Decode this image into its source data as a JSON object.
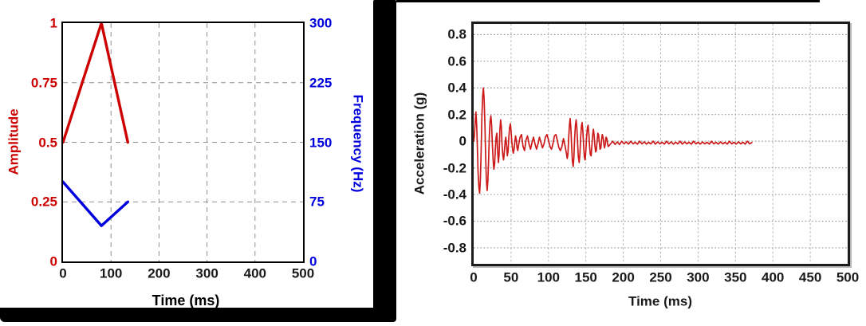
{
  "colors": {
    "amplitude_red": "#cc0000",
    "frequency_blue": "#0000dd",
    "acceleration_red": "#cc1a1a",
    "panel_border_black": "#000000"
  },
  "chart_data": [
    {
      "id": "sweep-profile",
      "type": "line",
      "title": "",
      "xlabel": "Time (ms)",
      "ylabel_left": "Amplitude",
      "ylabel_right": "Frequency (Hz)",
      "xlim": [
        0,
        500
      ],
      "xticks": {
        "values": [
          0,
          100,
          200,
          300,
          400,
          500
        ],
        "labels": [
          "0",
          "100",
          "200",
          "300",
          "400",
          "500"
        ]
      },
      "ylim_left": [
        0,
        1
      ],
      "yticks_left": {
        "values": [
          0,
          0.25,
          0.5,
          0.75,
          1
        ],
        "labels": [
          "0",
          "0.25",
          "0.5",
          "0.75",
          "1"
        ]
      },
      "ylim_right": [
        0,
        300
      ],
      "yticks_right": {
        "values": [
          0,
          75,
          150,
          225,
          300
        ],
        "labels": [
          "0",
          "75",
          "150",
          "225",
          "300"
        ]
      },
      "grid": "dashed-gray",
      "legend": "none",
      "series": [
        {
          "name": "Amplitude",
          "axis": "left",
          "color": "#cc0000",
          "width": 3.4,
          "points": [
            [
              0,
              0.5
            ],
            [
              80,
              1.0
            ],
            [
              135,
              0.5
            ]
          ]
        },
        {
          "name": "Frequency",
          "axis": "right",
          "color": "#0000dd",
          "width": 3.4,
          "points": [
            [
              0,
              100
            ],
            [
              80,
              45
            ],
            [
              135,
              75
            ]
          ]
        }
      ]
    },
    {
      "id": "acceleration-response",
      "type": "line",
      "title": "",
      "xlabel": "Time (ms)",
      "ylabel": "Acceleration (g)",
      "xlim": [
        0,
        500
      ],
      "xticks": {
        "values": [
          0,
          50,
          100,
          150,
          200,
          250,
          300,
          350,
          400,
          450,
          500
        ],
        "labels": [
          "0",
          "50",
          "100",
          "150",
          "200",
          "250",
          "300",
          "350",
          "400",
          "450",
          "500"
        ]
      },
      "ylim": [
        -0.92,
        0.88
      ],
      "yticks": {
        "values": [
          0.8,
          0.6,
          0.4,
          0.2,
          0,
          -0.2,
          -0.4,
          -0.6,
          -0.8
        ],
        "labels": [
          "0.8",
          "0.6",
          "0.4",
          "0.2",
          "0",
          "-0.2",
          "-0.4",
          "-0.6",
          "-0.8"
        ]
      },
      "grid": "dotted-gray",
      "legend": "none",
      "series": [
        {
          "name": "Acceleration",
          "axis": "left",
          "color": "#cc1a1a",
          "width": 1.7,
          "points": [
            [
              0,
              0
            ],
            [
              1,
              0.04
            ],
            [
              2,
              0.14
            ],
            [
              3,
              0.22
            ],
            [
              4,
              0.12
            ],
            [
              5,
              -0.06
            ],
            [
              6,
              -0.24
            ],
            [
              7,
              -0.35
            ],
            [
              8,
              -0.39
            ],
            [
              9,
              -0.29
            ],
            [
              10,
              -0.07
            ],
            [
              11,
              0.18
            ],
            [
              12,
              0.34
            ],
            [
              13,
              0.4
            ],
            [
              14,
              0.32
            ],
            [
              15,
              0.13
            ],
            [
              16,
              -0.11
            ],
            [
              17,
              -0.29
            ],
            [
              18,
              -0.37
            ],
            [
              19,
              -0.3
            ],
            [
              20,
              -0.13
            ],
            [
              21,
              0.05
            ],
            [
              22,
              0.15
            ],
            [
              23,
              0.19
            ],
            [
              24,
              0.12
            ],
            [
              25,
              -0.03
            ],
            [
              26,
              -0.14
            ],
            [
              27,
              -0.21
            ],
            [
              28,
              -0.17
            ],
            [
              29,
              -0.06
            ],
            [
              30,
              0.03
            ],
            [
              31,
              0.06
            ],
            [
              32,
              -0.07
            ],
            [
              33,
              -0.16
            ],
            [
              34,
              -0.1
            ],
            [
              35,
              0.08
            ],
            [
              36,
              0.16
            ],
            [
              37,
              0.11
            ],
            [
              38,
              -0.03
            ],
            [
              39,
              -0.11
            ],
            [
              40,
              -0.14
            ],
            [
              41,
              -0.08
            ],
            [
              42,
              -0.01
            ],
            [
              43,
              0.03
            ],
            [
              44,
              -0.03
            ],
            [
              45,
              -0.11
            ],
            [
              46,
              -0.08
            ],
            [
              47,
              0.03
            ],
            [
              48,
              0.1
            ],
            [
              49,
              0.13
            ],
            [
              50,
              0.08
            ],
            [
              51,
              0
            ],
            [
              52,
              -0.06
            ],
            [
              53,
              -0.09
            ],
            [
              54,
              -0.06
            ],
            [
              55,
              -0.01
            ],
            [
              56,
              0.04
            ],
            [
              57,
              0.01
            ],
            [
              58,
              -0.05
            ],
            [
              59,
              -0.07
            ],
            [
              60,
              -0.03
            ],
            [
              62,
              0.03
            ],
            [
              64,
              0.05
            ],
            [
              66,
              -0.04
            ],
            [
              68,
              -0.07
            ],
            [
              70,
              0.01
            ],
            [
              72,
              0.04
            ],
            [
              74,
              -0.02
            ],
            [
              76,
              -0.06
            ],
            [
              78,
              -0.01
            ],
            [
              80,
              0.03
            ],
            [
              82,
              -0.02
            ],
            [
              84,
              -0.06
            ],
            [
              86,
              -0.02
            ],
            [
              88,
              0.03
            ],
            [
              90,
              -0.01
            ],
            [
              92,
              -0.05
            ],
            [
              94,
              -0.02
            ],
            [
              96,
              0.03
            ],
            [
              98,
              0.05
            ],
            [
              100,
              0.01
            ],
            [
              102,
              -0.04
            ],
            [
              104,
              -0.06
            ],
            [
              106,
              -0.02
            ],
            [
              108,
              0.04
            ],
            [
              110,
              0.05
            ],
            [
              112,
              0
            ],
            [
              114,
              -0.05
            ],
            [
              116,
              -0.07
            ],
            [
              118,
              -0.04
            ],
            [
              120,
              0.02
            ],
            [
              122,
              -0.03
            ],
            [
              124,
              -0.09
            ],
            [
              125,
              -0.13
            ],
            [
              126,
              -0.1
            ],
            [
              127,
              0.02
            ],
            [
              128,
              0.12
            ],
            [
              129,
              0.17
            ],
            [
              130,
              0.1
            ],
            [
              131,
              -0.04
            ],
            [
              132,
              -0.15
            ],
            [
              133,
              -0.19
            ],
            [
              134,
              -0.12
            ],
            [
              135,
              0.02
            ],
            [
              136,
              0.12
            ],
            [
              137,
              0.16
            ],
            [
              138,
              0.1
            ],
            [
              139,
              -0.02
            ],
            [
              140,
              -0.12
            ],
            [
              141,
              -0.16
            ],
            [
              142,
              -0.1
            ],
            [
              143,
              0.02
            ],
            [
              144,
              0.11
            ],
            [
              145,
              0.14
            ],
            [
              146,
              0.08
            ],
            [
              147,
              -0.03
            ],
            [
              148,
              -0.12
            ],
            [
              149,
              -0.14
            ],
            [
              150,
              -0.07
            ],
            [
              151,
              0.03
            ],
            [
              152,
              0.1
            ],
            [
              153,
              0.12
            ],
            [
              154,
              0.05
            ],
            [
              155,
              -0.04
            ],
            [
              156,
              -0.1
            ],
            [
              157,
              -0.11
            ],
            [
              158,
              -0.04
            ],
            [
              159,
              0.04
            ],
            [
              160,
              0.09
            ],
            [
              161,
              0.05
            ],
            [
              162,
              -0.03
            ],
            [
              163,
              -0.08
            ],
            [
              164,
              -0.07
            ],
            [
              165,
              0
            ],
            [
              166,
              0.06
            ],
            [
              167,
              0.05
            ],
            [
              168,
              -0.01
            ],
            [
              169,
              -0.06
            ],
            [
              170,
              -0.05
            ],
            [
              171,
              0.01
            ],
            [
              172,
              0.05
            ],
            [
              173,
              0.03
            ],
            [
              174,
              -0.02
            ],
            [
              175,
              -0.05
            ],
            [
              176,
              -0.02
            ],
            [
              177,
              0.03
            ],
            [
              178,
              0.02
            ],
            [
              179,
              -0.02
            ],
            [
              180,
              -0.04
            ],
            [
              183,
              -0.02
            ],
            [
              186,
              0
            ],
            [
              189,
              -0.025
            ],
            [
              192,
              -0.005
            ],
            [
              195,
              -0.025
            ],
            [
              198,
              0
            ],
            [
              201,
              -0.02
            ],
            [
              204,
              -0.005
            ],
            [
              207,
              -0.022
            ],
            [
              210,
              0
            ],
            [
              213,
              -0.02
            ],
            [
              216,
              -0.008
            ],
            [
              219,
              -0.022
            ],
            [
              222,
              0
            ],
            [
              225,
              -0.02
            ],
            [
              228,
              -0.005
            ],
            [
              231,
              -0.022
            ],
            [
              234,
              -0.008
            ],
            [
              237,
              -0.02
            ],
            [
              240,
              0
            ],
            [
              243,
              -0.022
            ],
            [
              246,
              -0.005
            ],
            [
              249,
              -0.02
            ],
            [
              252,
              -0.008
            ],
            [
              255,
              -0.022
            ],
            [
              258,
              0
            ],
            [
              261,
              -0.02
            ],
            [
              264,
              -0.005
            ],
            [
              267,
              -0.022
            ],
            [
              270,
              -0.008
            ],
            [
              273,
              -0.02
            ],
            [
              276,
              0
            ],
            [
              279,
              -0.022
            ],
            [
              282,
              -0.005
            ],
            [
              285,
              -0.02
            ],
            [
              288,
              -0.008
            ],
            [
              291,
              -0.022
            ],
            [
              294,
              0
            ],
            [
              297,
              -0.02
            ],
            [
              300,
              -0.008
            ],
            [
              303,
              -0.022
            ],
            [
              306,
              -0.005
            ],
            [
              309,
              -0.02
            ],
            [
              312,
              -0.008
            ],
            [
              315,
              -0.022
            ],
            [
              318,
              0
            ],
            [
              321,
              -0.02
            ],
            [
              324,
              -0.008
            ],
            [
              327,
              -0.022
            ],
            [
              330,
              -0.005
            ],
            [
              333,
              -0.02
            ],
            [
              336,
              -0.008
            ],
            [
              339,
              -0.022
            ],
            [
              342,
              0
            ],
            [
              345,
              -0.02
            ],
            [
              348,
              -0.008
            ],
            [
              351,
              -0.022
            ],
            [
              354,
              -0.005
            ],
            [
              357,
              -0.02
            ],
            [
              360,
              -0.008
            ],
            [
              363,
              -0.022
            ],
            [
              366,
              0
            ],
            [
              369,
              -0.02
            ],
            [
              372,
              -0.01
            ]
          ]
        }
      ]
    }
  ]
}
